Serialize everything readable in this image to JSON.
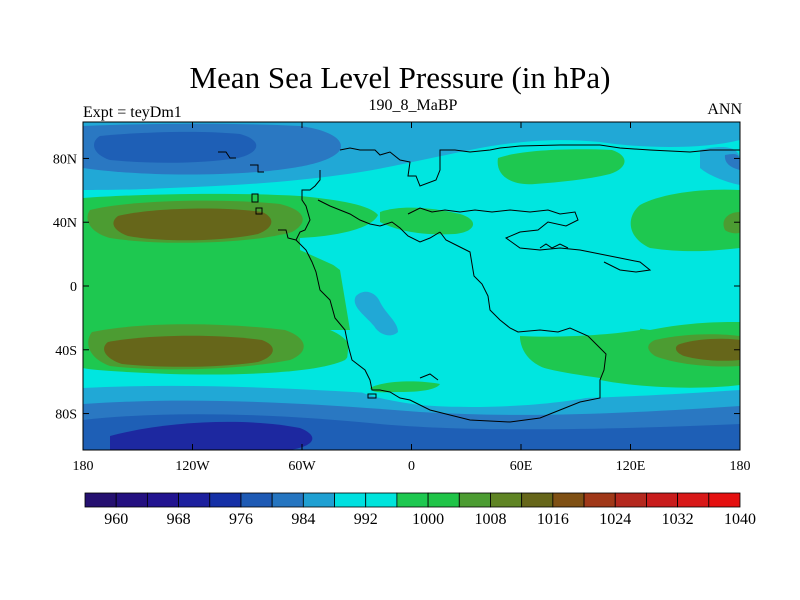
{
  "title": "Mean Sea Level Pressure (in hPa)",
  "subtitle_left": "Expt = teyDm1",
  "subtitle_center": "190_8_MaBP",
  "subtitle_right": "ANN",
  "map": {
    "y_ticks": [
      {
        "lat": 70,
        "label": "80N"
      },
      {
        "lat": 35,
        "label": "40N"
      },
      {
        "lat": 0,
        "label": "0"
      },
      {
        "lat": -35,
        "label": "40S"
      },
      {
        "lat": -70,
        "label": "80S"
      }
    ],
    "x_ticks": [
      {
        "lon": -180,
        "label": "180"
      },
      {
        "lon": -120,
        "label": "120W"
      },
      {
        "lon": -60,
        "label": "60W"
      },
      {
        "lon": 0,
        "label": "0"
      },
      {
        "lon": 60,
        "label": "60E"
      },
      {
        "lon": 120,
        "label": "120E"
      },
      {
        "lon": 180,
        "label": "180"
      }
    ]
  },
  "colorbar": {
    "colors": [
      "#251070",
      "#241080",
      "#221490",
      "#1d209e",
      "#1530a6",
      "#1e5ab4",
      "#2575c0",
      "#1fa0d2",
      "#00e0e0",
      "#00e4dc",
      "#1ec850",
      "#20c448",
      "#4c9c32",
      "#5f8424",
      "#66661a",
      "#7f5014",
      "#a03818",
      "#b4281e",
      "#c81c1c",
      "#d81818",
      "#e41010"
    ],
    "labels": [
      {
        "after": 1,
        "text": "960"
      },
      {
        "after": 3,
        "text": "968"
      },
      {
        "after": 5,
        "text": "976"
      },
      {
        "after": 7,
        "text": "984"
      },
      {
        "after": 9,
        "text": "992"
      },
      {
        "after": 11,
        "text": "1000"
      },
      {
        "after": 13,
        "text": "1008"
      },
      {
        "after": 15,
        "text": "1016"
      },
      {
        "after": 17,
        "text": "1024"
      },
      {
        "after": 19,
        "text": "1032"
      },
      {
        "after": 21,
        "text": "1040"
      }
    ]
  }
}
